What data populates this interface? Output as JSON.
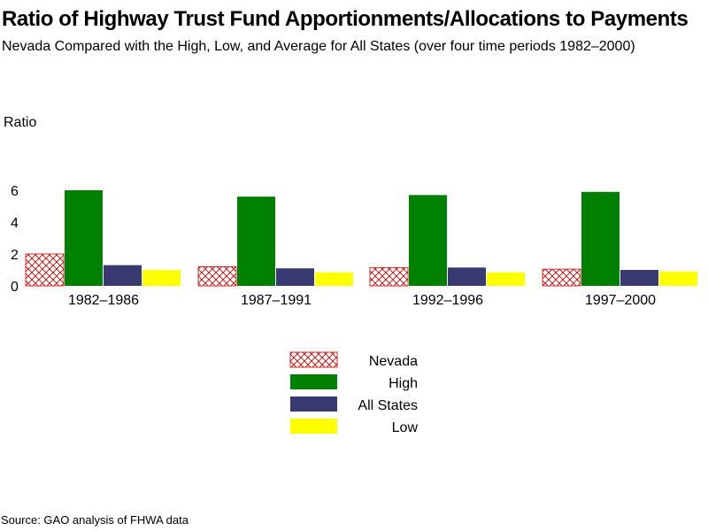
{
  "title": "Ratio of Highway Trust Fund Apportionments/Allocations to Payments",
  "subtitle": "Nevada Compared with the High, Low, and Average for All States (over four time periods 1982–2000)",
  "source": "Source: GAO analysis of FHWA data",
  "chart_data": {
    "type": "bar",
    "ylabel": "Ratio",
    "xlabel": "",
    "ylim": [
      0,
      6
    ],
    "yticks": [
      0,
      2,
      4,
      6
    ],
    "categories": [
      "1982–1986",
      "1987–1991",
      "1992–1996",
      "1997–2000"
    ],
    "series": [
      {
        "name": "Nevada",
        "color": "#cc0000",
        "pattern": "crosshatch",
        "values": [
          2.0,
          1.2,
          1.15,
          1.05
        ]
      },
      {
        "name": "High",
        "color": "#008000",
        "values": [
          6.0,
          5.6,
          5.7,
          5.9
        ]
      },
      {
        "name": "All States",
        "color": "#3a3a72",
        "values": [
          1.3,
          1.1,
          1.15,
          1.0
        ]
      },
      {
        "name": "Low",
        "color": "#ffff00",
        "values": [
          1.0,
          0.85,
          0.85,
          0.9
        ]
      }
    ],
    "grid": false,
    "legend": "bottom-center"
  }
}
